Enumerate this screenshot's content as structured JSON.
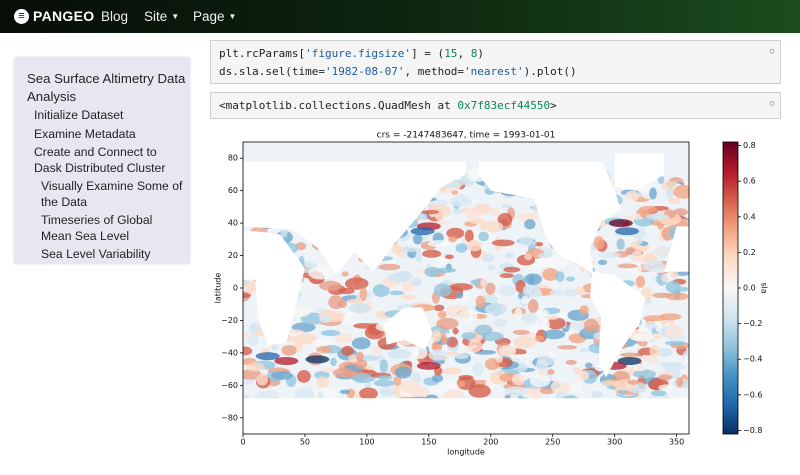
{
  "navbar": {
    "brand": "PANGEO",
    "links": [
      "Blog",
      "Site",
      "Page"
    ]
  },
  "sidebar": {
    "title": "Sea Surface Altimetry Data Analysis",
    "items": [
      {
        "text": "Initialize Dataset"
      },
      {
        "text": "Examine Metadata"
      },
      {
        "text": "Create and Connect to Dask Distributed Cluster",
        "children": [
          "Visually Examine Some of the Data",
          "Timeseries of Global Mean Sea Level",
          "Sea Level Variability"
        ]
      }
    ]
  },
  "cells": [
    {
      "input": [
        [
          "plt.rcParams[",
          {
            "text": "'figure.figsize'",
            "color": "#1a5e9b"
          },
          "] = (",
          {
            "text": "15",
            "color": "#098658"
          },
          ", ",
          {
            "text": "8",
            "color": "#098658"
          },
          ")"
        ],
        [
          "ds.sla.sel(time=",
          {
            "text": "'1982-08-07'",
            "color": "#1a5e9b"
          },
          ", method=",
          {
            "text": "'nearest'",
            "color": "#1a5e9b"
          },
          ").plot()"
        ]
      ]
    },
    {
      "output": [
        "<matplotlib.collections.QuadMesh at ",
        {
          "text": "0x7f83ecf44550",
          "color": "#098658"
        },
        ">"
      ]
    }
  ],
  "figure": {
    "type": "heatmap",
    "title": "crs = -2147483647, time = 1993-01-01",
    "xlabel": "longitude",
    "ylabel": "latitude",
    "xlim": [
      0,
      360
    ],
    "ylim": [
      -90,
      90
    ],
    "xticks": [
      0,
      50,
      100,
      150,
      200,
      250,
      300,
      350
    ],
    "yticks": [
      80,
      60,
      40,
      20,
      0,
      {
        "value": -20,
        "label": "−20"
      },
      {
        "value": -40,
        "label": "−40"
      },
      {
        "value": -60,
        "label": "−60"
      },
      {
        "value": -80,
        "label": "−80"
      }
    ],
    "colorbar": {
      "label": "sla",
      "lim": [
        -0.82,
        0.82
      ],
      "ticks": [
        0.8,
        0.6,
        0.4,
        0.2,
        {
          "value": 0,
          "label": "0.0"
        },
        {
          "value": -0.2,
          "label": "−0.2"
        },
        {
          "value": -0.4,
          "label": "−0.4"
        },
        {
          "value": -0.6,
          "label": "−0.6"
        },
        {
          "value": -0.8,
          "label": "−0.8"
        }
      ]
    }
  }
}
